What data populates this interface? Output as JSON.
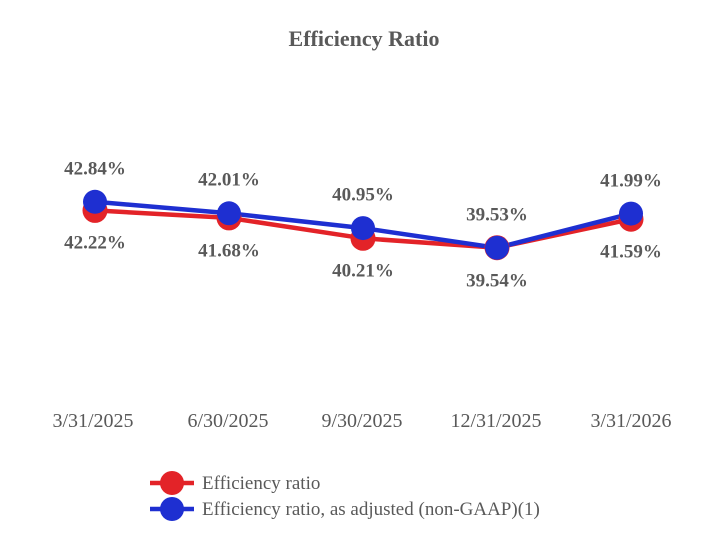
{
  "title": "Efficiency Ratio",
  "colors": {
    "red": "#e32328",
    "blue": "#1e2fd1",
    "text": "#595959",
    "background": "#ffffff"
  },
  "chart_data": {
    "type": "line",
    "title": "Efficiency Ratio",
    "categories": [
      "3/31/2025",
      "6/30/2025",
      "9/30/2025",
      "12/31/2025",
      "3/31/2026"
    ],
    "series": [
      {
        "name": "Efficiency ratio",
        "color": "#e32328",
        "values": [
          42.22,
          41.68,
          40.21,
          39.54,
          41.59
        ],
        "labels": [
          "42.22%",
          "41.68%",
          "40.21%",
          "39.54%",
          "41.59%"
        ],
        "label_position": "below",
        "marker": "circle"
      },
      {
        "name": "Efficiency ratio, as adjusted (non-GAAP)(1)",
        "color": "#1e2fd1",
        "values": [
          42.84,
          42.01,
          40.95,
          39.53,
          41.99
        ],
        "labels": [
          "42.84%",
          "42.01%",
          "40.95%",
          "39.53%",
          "41.99%"
        ],
        "label_position": "above",
        "marker": "circle"
      }
    ],
    "ylim": [
      39.0,
      43.4
    ],
    "xlabel": "",
    "ylabel": "",
    "grid": false,
    "y_axis_visible": false,
    "legend_position": "bottom-left"
  },
  "legend": {
    "items": [
      {
        "label": "Efficiency ratio",
        "color": "#e32328",
        "swatch": "circle-line"
      },
      {
        "label": "Efficiency ratio, as adjusted (non-GAAP)(1)",
        "color": "#1e2fd1",
        "swatch": "circle-line"
      }
    ]
  }
}
